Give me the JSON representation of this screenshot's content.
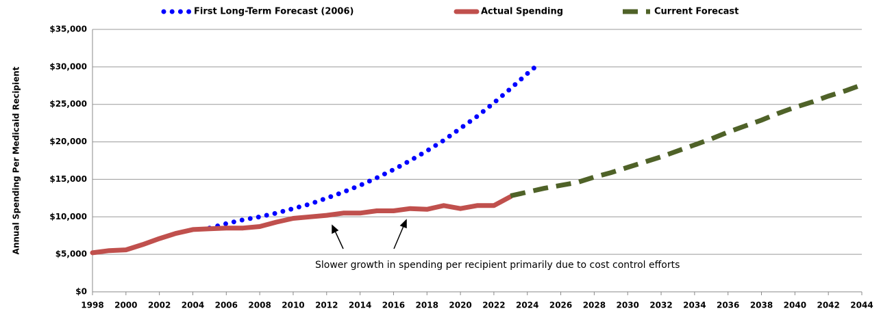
{
  "chart_data": {
    "type": "line",
    "y_label": "Annual Spending Per Medicaid Recipient",
    "annotation": "Slower growth in spending per recipient primarily due to cost control efforts",
    "series": [
      {
        "name": "First Long-Term Forecast (2006)",
        "color": "#0000ff",
        "style": "dotted",
        "x": [
          2005,
          2006,
          2007,
          2008,
          2009,
          2010,
          2011,
          2012,
          2013,
          2014,
          2015,
          2016,
          2017,
          2018,
          2019,
          2020,
          2021,
          2022,
          2023,
          2024,
          2024.75
        ],
        "values": [
          8500,
          9100,
          9600,
          10000,
          10500,
          11100,
          11700,
          12500,
          13300,
          14200,
          15200,
          16300,
          17500,
          18800,
          20200,
          21800,
          23400,
          25200,
          27100,
          29100,
          30500
        ]
      },
      {
        "name": "Actual Spending",
        "color": "#c0504d",
        "style": "solid",
        "x": [
          1998,
          1999,
          2000,
          2001,
          2002,
          2003,
          2004,
          2005,
          2006,
          2007,
          2008,
          2009,
          2010,
          2011,
          2012,
          2013,
          2014,
          2015,
          2016,
          2017,
          2018,
          2019,
          2020,
          2021,
          2022,
          2023
        ],
        "values": [
          5200,
          5500,
          5600,
          6300,
          7100,
          7800,
          8300,
          8400,
          8500,
          8500,
          8700,
          9300,
          9800,
          10000,
          10200,
          10500,
          10500,
          10800,
          10800,
          11100,
          11000,
          11500,
          11100,
          11500,
          11500,
          12700
        ]
      },
      {
        "name": "Current Forecast",
        "color": "#4f6228",
        "style": "dashed",
        "x": [
          2023,
          2024,
          2025,
          2026,
          2027,
          2028,
          2029,
          2030,
          2031,
          2032,
          2033,
          2034,
          2035,
          2036,
          2037,
          2038,
          2039,
          2040,
          2041,
          2042,
          2043,
          2044
        ],
        "values": [
          12800,
          13300,
          13800,
          14200,
          14600,
          15300,
          15900,
          16600,
          17300,
          18000,
          18800,
          19600,
          20400,
          21300,
          22100,
          22900,
          23800,
          24600,
          25300,
          26100,
          26800,
          27600
        ]
      }
    ],
    "xlim": [
      1998,
      2044
    ],
    "xticks": [
      1998,
      2000,
      2002,
      2004,
      2006,
      2008,
      2010,
      2012,
      2014,
      2016,
      2018,
      2020,
      2022,
      2024,
      2026,
      2028,
      2030,
      2032,
      2034,
      2036,
      2038,
      2040,
      2042,
      2044
    ],
    "ylim": [
      0,
      35000
    ],
    "yticks": [
      {
        "value": 0,
        "label": "$0"
      },
      {
        "value": 5000,
        "label": "$5,000"
      },
      {
        "value": 10000,
        "label": "$10,000"
      },
      {
        "value": 15000,
        "label": "$15,000"
      },
      {
        "value": 20000,
        "label": "$20,000"
      },
      {
        "value": 25000,
        "label": "$25,000"
      },
      {
        "value": 30000,
        "label": "$30,000"
      },
      {
        "value": 35000,
        "label": "$35,000"
      }
    ],
    "grid": true
  }
}
